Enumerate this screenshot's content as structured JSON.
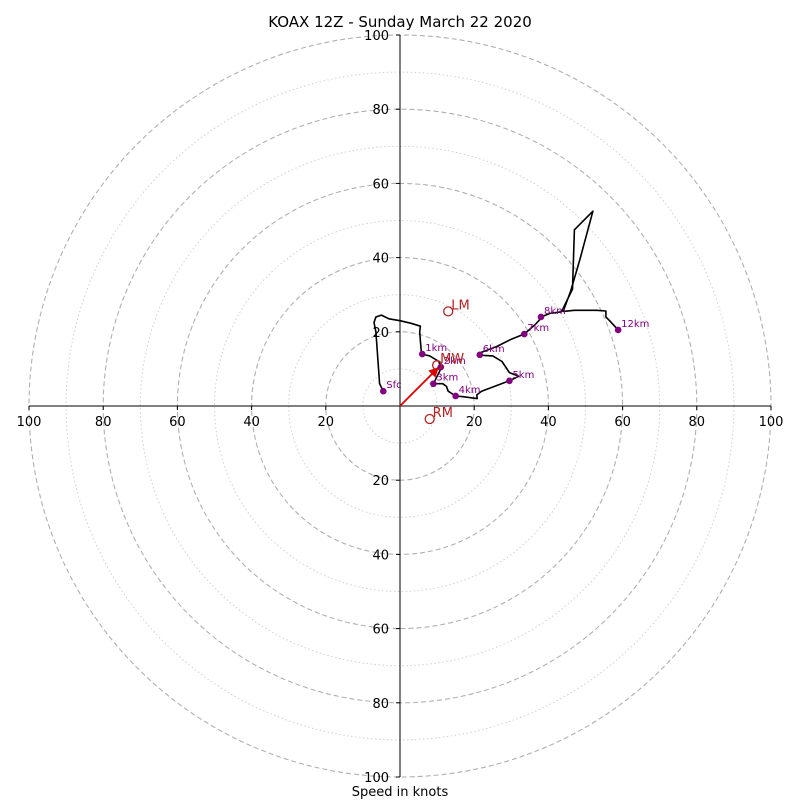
{
  "chart_data": {
    "type": "hodograph",
    "title": "KOAX 12Z - Sunday March 22 2020",
    "xlabel": "Speed in knots",
    "range": [
      -100,
      100
    ],
    "ring_labels": [
      "100",
      "80",
      "60",
      "40",
      "20",
      "20",
      "40",
      "60",
      "80",
      "100"
    ],
    "y_ring_labels_top": [
      "100",
      "80",
      "60",
      "40",
      "20"
    ],
    "y_ring_labels_bottom": [
      "20",
      "40",
      "60",
      "80",
      "100"
    ],
    "major_rings": [
      20,
      40,
      60,
      80,
      100
    ],
    "minor_rings": [
      10,
      30,
      50,
      70,
      90
    ],
    "trace": [
      [
        -4.5,
        4
      ],
      [
        -5.5,
        6
      ],
      [
        -6.5,
        20
      ],
      [
        -7,
        22.5
      ],
      [
        -6.5,
        24
      ],
      [
        -5,
        24.5
      ],
      [
        -3,
        23.5
      ],
      [
        0,
        23
      ],
      [
        3,
        22.3
      ],
      [
        5.5,
        21.5
      ],
      [
        5.3,
        20
      ],
      [
        5.5,
        17.5
      ],
      [
        5.8,
        14
      ],
      [
        8,
        13.5
      ],
      [
        10.5,
        12
      ],
      [
        11,
        10
      ],
      [
        10,
        8
      ],
      [
        9,
        6
      ],
      [
        11.5,
        6
      ],
      [
        12.5,
        5.3
      ],
      [
        13,
        4
      ],
      [
        15,
        2.7
      ],
      [
        17,
        2.5
      ],
      [
        20,
        2.1
      ],
      [
        20.8,
        2
      ],
      [
        20.7,
        3
      ],
      [
        22,
        4
      ],
      [
        26,
        5.5
      ],
      [
        29.5,
        6.8
      ],
      [
        32,
        8
      ],
      [
        29.5,
        9
      ],
      [
        27.5,
        12
      ],
      [
        25,
        13.5
      ],
      [
        21.5,
        13.7
      ],
      [
        22,
        14.5
      ],
      [
        26,
        16
      ],
      [
        30,
        18
      ],
      [
        33.5,
        19.4
      ],
      [
        36.5,
        22
      ],
      [
        38.5,
        24.2
      ],
      [
        40.5,
        25
      ],
      [
        43.5,
        25.4
      ],
      [
        46.5,
        31.5
      ],
      [
        47,
        47.5
      ],
      [
        52,
        52.5
      ],
      [
        48.5,
        39.5
      ],
      [
        46,
        31
      ],
      [
        44,
        25.5
      ],
      [
        47,
        25.8
      ],
      [
        50,
        25.8
      ],
      [
        53,
        25.8
      ],
      [
        55.5,
        25.6
      ],
      [
        55.5,
        24
      ],
      [
        56.5,
        23
      ],
      [
        58.8,
        20.5
      ]
    ],
    "height_points": [
      {
        "label": "Sfc",
        "u": -4.5,
        "v": 4
      },
      {
        "label": "1km",
        "u": 6,
        "v": 14
      },
      {
        "label": "2km",
        "u": 11,
        "v": 10.5
      },
      {
        "label": "3km",
        "u": 9,
        "v": 6
      },
      {
        "label": "4km",
        "u": 15,
        "v": 2.7
      },
      {
        "label": "5km",
        "u": 29.5,
        "v": 6.8
      },
      {
        "label": "6km",
        "u": 21.5,
        "v": 13.8
      },
      {
        "label": "7km",
        "u": 33.5,
        "v": 19.4
      },
      {
        "label": "8km",
        "u": 38,
        "v": 24
      },
      {
        "label": "12km",
        "u": 58.8,
        "v": 20.5
      }
    ],
    "motion_markers": [
      {
        "label": "LM",
        "u": 13,
        "v": 25.5
      },
      {
        "label": "MW",
        "u": 10,
        "v": 11
      },
      {
        "label": "RM",
        "u": 8,
        "v": -3.5
      }
    ],
    "shear_vector": {
      "from": [
        0,
        0
      ],
      "to": [
        10.5,
        10.5
      ]
    },
    "colors": {
      "trace": "#000000",
      "points": "#800080",
      "markers": "#b22222",
      "vector": "#e00000",
      "grid": "#b0b0b0"
    }
  }
}
